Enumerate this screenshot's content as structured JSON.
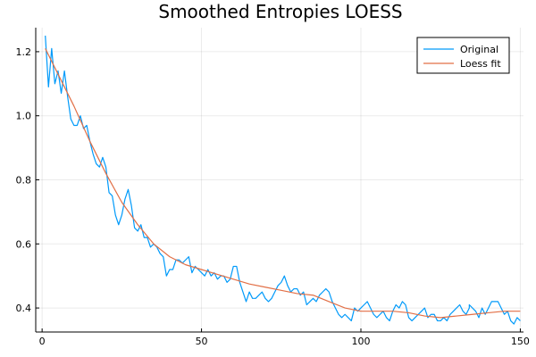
{
  "chart_data": {
    "type": "line",
    "title": "Smoothed Entropies LOESS",
    "xlabel": "",
    "ylabel": "",
    "xlim": [
      -2,
      151
    ],
    "ylim": [
      0.325,
      1.275
    ],
    "x_ticks": [
      0,
      50,
      100,
      150
    ],
    "y_ticks": [
      0.4,
      0.6,
      0.8,
      1.0,
      1.2
    ],
    "x_tick_labels": [
      "0",
      "50",
      "100",
      "150"
    ],
    "y_tick_labels": [
      "0.4",
      "0.6",
      "0.8",
      "1.0",
      "1.2"
    ],
    "grid": true,
    "legend_position": "top-right",
    "series": [
      {
        "name": "Original",
        "color": "#009AFA",
        "x": [
          1,
          2,
          3,
          4,
          5,
          6,
          7,
          8,
          9,
          10,
          11,
          12,
          13,
          14,
          15,
          16,
          17,
          18,
          19,
          20,
          21,
          22,
          23,
          24,
          25,
          26,
          27,
          28,
          29,
          30,
          31,
          32,
          33,
          34,
          35,
          36,
          37,
          38,
          39,
          40,
          41,
          42,
          43,
          44,
          45,
          46,
          47,
          48,
          49,
          50,
          51,
          52,
          53,
          54,
          55,
          56,
          57,
          58,
          59,
          60,
          61,
          62,
          63,
          64,
          65,
          66,
          67,
          68,
          69,
          70,
          71,
          72,
          73,
          74,
          75,
          76,
          77,
          78,
          79,
          80,
          81,
          82,
          83,
          84,
          85,
          86,
          87,
          88,
          89,
          90,
          91,
          92,
          93,
          94,
          95,
          96,
          97,
          98,
          99,
          100,
          101,
          102,
          103,
          104,
          105,
          106,
          107,
          108,
          109,
          110,
          111,
          112,
          113,
          114,
          115,
          116,
          117,
          118,
          119,
          120,
          121,
          122,
          123,
          124,
          125,
          126,
          127,
          128,
          129,
          130,
          131,
          132,
          133,
          134,
          134,
          136,
          137,
          138,
          139,
          140,
          141,
          142,
          143,
          144,
          145,
          146,
          147,
          148,
          149,
          150
        ],
        "y": [
          1.25,
          1.09,
          1.21,
          1.1,
          1.14,
          1.07,
          1.14,
          1.06,
          0.99,
          0.97,
          0.97,
          1.0,
          0.96,
          0.97,
          0.92,
          0.88,
          0.85,
          0.84,
          0.87,
          0.84,
          0.76,
          0.75,
          0.69,
          0.66,
          0.69,
          0.74,
          0.77,
          0.72,
          0.65,
          0.64,
          0.66,
          0.62,
          0.62,
          0.59,
          0.6,
          0.59,
          0.57,
          0.56,
          0.5,
          0.52,
          0.52,
          0.55,
          0.55,
          0.54,
          0.55,
          0.56,
          0.51,
          0.53,
          0.52,
          0.51,
          0.5,
          0.52,
          0.5,
          0.51,
          0.49,
          0.5,
          0.5,
          0.48,
          0.49,
          0.53,
          0.53,
          0.48,
          0.45,
          0.42,
          0.45,
          0.43,
          0.43,
          0.44,
          0.45,
          0.43,
          0.42,
          0.43,
          0.45,
          0.47,
          0.48,
          0.5,
          0.47,
          0.45,
          0.46,
          0.46,
          0.44,
          0.45,
          0.41,
          0.42,
          0.43,
          0.42,
          0.44,
          0.45,
          0.46,
          0.45,
          0.42,
          0.4,
          0.38,
          0.37,
          0.38,
          0.37,
          0.36,
          0.4,
          0.39,
          0.4,
          0.41,
          0.42,
          0.4,
          0.38,
          0.37,
          0.38,
          0.39,
          0.37,
          0.36,
          0.39,
          0.41,
          0.4,
          0.42,
          0.41,
          0.37,
          0.36,
          0.37,
          0.38,
          0.39,
          0.4,
          0.37,
          0.38,
          0.38,
          0.36,
          0.36,
          0.37,
          0.36,
          0.38,
          0.39,
          0.4,
          0.41,
          0.39,
          0.38,
          0.4,
          0.41,
          0.39,
          0.37,
          0.4,
          0.38,
          0.4,
          0.42,
          0.42,
          0.42,
          0.4,
          0.38,
          0.39,
          0.36,
          0.35,
          0.37,
          0.36
        ]
      },
      {
        "name": "Loess fit",
        "color": "#E26F46",
        "x": [
          1,
          5,
          10,
          15,
          20,
          25,
          30,
          35,
          40,
          45,
          50,
          55,
          60,
          65,
          70,
          75,
          80,
          85,
          90,
          95,
          100,
          105,
          110,
          115,
          120,
          125,
          130,
          135,
          140,
          145,
          150
        ],
        "y": [
          1.21,
          1.13,
          1.03,
          0.92,
          0.82,
          0.73,
          0.66,
          0.6,
          0.56,
          0.535,
          0.52,
          0.505,
          0.49,
          0.475,
          0.465,
          0.455,
          0.445,
          0.44,
          0.42,
          0.4,
          0.39,
          0.39,
          0.39,
          0.385,
          0.375,
          0.37,
          0.375,
          0.38,
          0.385,
          0.39,
          0.39
        ]
      }
    ]
  }
}
